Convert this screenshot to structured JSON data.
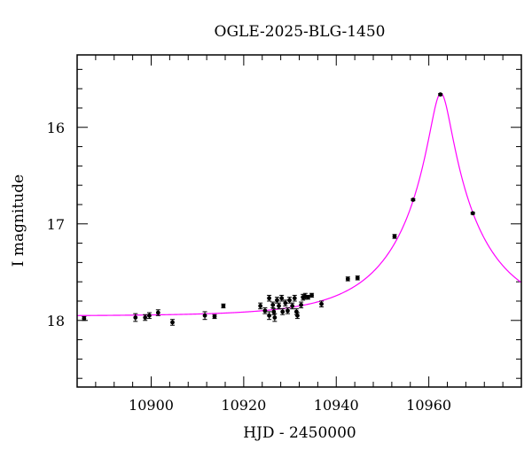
{
  "chart_data": {
    "type": "scatter",
    "title": "OGLE-2025-BLG-1450",
    "xlabel": "HJD - 2450000",
    "ylabel": "I magnitude",
    "xlim": [
      10884,
      10980
    ],
    "ylim": [
      18.69,
      15.25
    ],
    "y_inverted": true,
    "grid": false,
    "x_ticks": [
      "10900",
      "10920",
      "10940",
      "10960"
    ],
    "x_tick_values": [
      10900,
      10920,
      10940,
      10960
    ],
    "y_ticks": [
      "16",
      "17",
      "18"
    ],
    "y_tick_values": [
      16,
      17,
      18
    ],
    "colors": {
      "points": "#000000",
      "model": "#ff00ff"
    },
    "points": [
      [
        10885.5,
        17.98,
        0.02
      ],
      [
        10896.6,
        17.97,
        0.04
      ],
      [
        10898.7,
        17.97,
        0.03
      ],
      [
        10899.6,
        17.95,
        0.03
      ],
      [
        10901.5,
        17.92,
        0.03
      ],
      [
        10904.6,
        18.02,
        0.03
      ],
      [
        10911.6,
        17.95,
        0.04
      ],
      [
        10913.7,
        17.96,
        0.02
      ],
      [
        10915.6,
        17.85,
        0.02
      ],
      [
        10923.6,
        17.85,
        0.03
      ],
      [
        10924.6,
        17.9,
        0.03
      ],
      [
        10925.5,
        17.77,
        0.03
      ],
      [
        10925.5,
        17.95,
        0.04
      ],
      [
        10926.3,
        17.84,
        0.03
      ],
      [
        10926.5,
        17.91,
        0.03
      ],
      [
        10926.7,
        17.97,
        0.04
      ],
      [
        10927.2,
        17.79,
        0.03
      ],
      [
        10927.6,
        17.85,
        0.03
      ],
      [
        10928.2,
        17.77,
        0.03
      ],
      [
        10928.4,
        17.91,
        0.03
      ],
      [
        10929.0,
        17.82,
        0.03
      ],
      [
        10929.5,
        17.9,
        0.03
      ],
      [
        10929.9,
        17.79,
        0.03
      ],
      [
        10930.5,
        17.85,
        0.03
      ],
      [
        10931.0,
        17.77,
        0.03
      ],
      [
        10931.4,
        17.91,
        0.03
      ],
      [
        10931.6,
        17.95,
        0.03
      ],
      [
        10932.4,
        17.84,
        0.03
      ],
      [
        10932.8,
        17.76,
        0.03
      ],
      [
        10933.3,
        17.75,
        0.03
      ],
      [
        10933.9,
        17.76,
        0.02
      ],
      [
        10934.7,
        17.74,
        0.02
      ],
      [
        10936.8,
        17.83,
        0.03
      ],
      [
        10942.5,
        17.57,
        0.02
      ],
      [
        10944.6,
        17.56,
        0.02
      ],
      [
        10952.6,
        17.13,
        0.02
      ],
      [
        10956.6,
        16.75,
        0.01
      ],
      [
        10962.5,
        15.66,
        0.01
      ],
      [
        10969.5,
        16.89,
        0.01
      ]
    ],
    "model": {
      "name": "",
      "t0": 10962.6,
      "u0": 0.12,
      "tE": 18.4,
      "I0": 17.955
    }
  }
}
